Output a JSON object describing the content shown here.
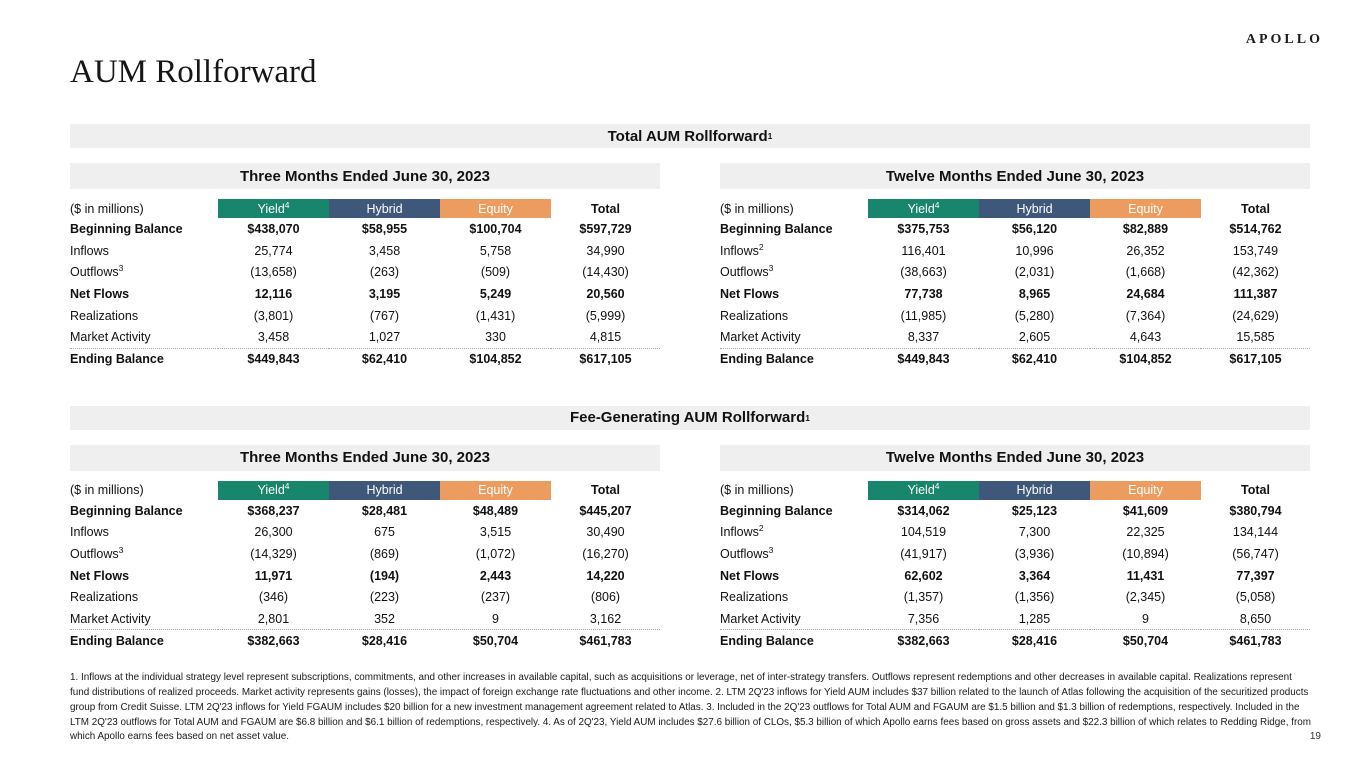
{
  "brand": {
    "logo_text": "APOLLO"
  },
  "page": {
    "title": "AUM Rollforward",
    "number": "19"
  },
  "colors": {
    "band_bg": "#EFEFEF",
    "yield": "#17866C",
    "hybrid": "#3F587A",
    "equity": "#EC9C5E",
    "column_header_text": "#FFFFFF"
  },
  "sections": [
    {
      "title": "Total AUM Rollforward",
      "title_superscript": "1",
      "tables": [
        {
          "period_header": "Three Months Ended June 30, 2023",
          "unit_label": "($ in millions)",
          "columns": [
            {
              "label": "Yield",
              "superscript": "4",
              "color_key": "yield"
            },
            {
              "label": "Hybrid",
              "superscript": "",
              "color_key": "hybrid"
            },
            {
              "label": "Equity",
              "superscript": "",
              "color_key": "equity"
            },
            {
              "label": "Total",
              "superscript": "",
              "color_key": ""
            }
          ],
          "rows": [
            {
              "label": "Beginning Balance",
              "superscript": "",
              "bold": true,
              "topline": false,
              "values": [
                "$438,070",
                "$58,955",
                "$100,704",
                "$597,729"
              ]
            },
            {
              "label": "Inflows",
              "superscript": "",
              "bold": false,
              "topline": false,
              "values": [
                "25,774",
                "3,458",
                "5,758",
                "34,990"
              ]
            },
            {
              "label": "Outflows",
              "superscript": "3",
              "bold": false,
              "topline": false,
              "values": [
                "(13,658)",
                "(263)",
                "(509)",
                "(14,430)"
              ]
            },
            {
              "label": "Net Flows",
              "superscript": "",
              "bold": true,
              "topline": false,
              "values": [
                "12,116",
                "3,195",
                "5,249",
                "20,560"
              ]
            },
            {
              "label": "Realizations",
              "superscript": "",
              "bold": false,
              "topline": false,
              "values": [
                "(3,801)",
                "(767)",
                "(1,431)",
                "(5,999)"
              ]
            },
            {
              "label": "Market Activity",
              "superscript": "",
              "bold": false,
              "topline": false,
              "values": [
                "3,458",
                "1,027",
                "330",
                "4,815"
              ]
            },
            {
              "label": "Ending Balance",
              "superscript": "",
              "bold": true,
              "topline": true,
              "values": [
                "$449,843",
                "$62,410",
                "$104,852",
                "$617,105"
              ]
            }
          ]
        },
        {
          "period_header": "Twelve Months Ended June 30, 2023",
          "unit_label": "($ in millions)",
          "columns": [
            {
              "label": "Yield",
              "superscript": "4",
              "color_key": "yield"
            },
            {
              "label": "Hybrid",
              "superscript": "",
              "color_key": "hybrid"
            },
            {
              "label": "Equity",
              "superscript": "",
              "color_key": "equity"
            },
            {
              "label": "Total",
              "superscript": "",
              "color_key": ""
            }
          ],
          "rows": [
            {
              "label": "Beginning Balance",
              "superscript": "",
              "bold": true,
              "topline": false,
              "values": [
                "$375,753",
                "$56,120",
                "$82,889",
                "$514,762"
              ]
            },
            {
              "label": "Inflows",
              "superscript": "2",
              "bold": false,
              "topline": false,
              "values": [
                "116,401",
                "10,996",
                "26,352",
                "153,749"
              ]
            },
            {
              "label": "Outflows",
              "superscript": "3",
              "bold": false,
              "topline": false,
              "values": [
                "(38,663)",
                "(2,031)",
                "(1,668)",
                "(42,362)"
              ]
            },
            {
              "label": "Net Flows",
              "superscript": "",
              "bold": true,
              "topline": false,
              "values": [
                "77,738",
                "8,965",
                "24,684",
                "111,387"
              ]
            },
            {
              "label": "Realizations",
              "superscript": "",
              "bold": false,
              "topline": false,
              "values": [
                "(11,985)",
                "(5,280)",
                "(7,364)",
                "(24,629)"
              ]
            },
            {
              "label": "Market Activity",
              "superscript": "",
              "bold": false,
              "topline": false,
              "values": [
                "8,337",
                "2,605",
                "4,643",
                "15,585"
              ]
            },
            {
              "label": "Ending Balance",
              "superscript": "",
              "bold": true,
              "topline": true,
              "values": [
                "$449,843",
                "$62,410",
                "$104,852",
                "$617,105"
              ]
            }
          ]
        }
      ]
    },
    {
      "title": "Fee-Generating AUM Rollforward",
      "title_superscript": "1",
      "tables": [
        {
          "period_header": "Three Months Ended June 30, 2023",
          "unit_label": "($ in millions)",
          "columns": [
            {
              "label": "Yield",
              "superscript": "4",
              "color_key": "yield"
            },
            {
              "label": "Hybrid",
              "superscript": "",
              "color_key": "hybrid"
            },
            {
              "label": "Equity",
              "superscript": "",
              "color_key": "equity"
            },
            {
              "label": "Total",
              "superscript": "",
              "color_key": ""
            }
          ],
          "rows": [
            {
              "label": "Beginning Balance",
              "superscript": "",
              "bold": true,
              "topline": false,
              "values": [
                "$368,237",
                "$28,481",
                "$48,489",
                "$445,207"
              ]
            },
            {
              "label": "Inflows",
              "superscript": "",
              "bold": false,
              "topline": false,
              "values": [
                "26,300",
                "675",
                "3,515",
                "30,490"
              ]
            },
            {
              "label": "Outflows",
              "superscript": "3",
              "bold": false,
              "topline": false,
              "values": [
                "(14,329)",
                "(869)",
                "(1,072)",
                "(16,270)"
              ]
            },
            {
              "label": "Net Flows",
              "superscript": "",
              "bold": true,
              "topline": false,
              "values": [
                "11,971",
                "(194)",
                "2,443",
                "14,220"
              ]
            },
            {
              "label": "Realizations",
              "superscript": "",
              "bold": false,
              "topline": false,
              "values": [
                "(346)",
                "(223)",
                "(237)",
                "(806)"
              ]
            },
            {
              "label": "Market Activity",
              "superscript": "",
              "bold": false,
              "topline": false,
              "values": [
                "2,801",
                "352",
                "9",
                "3,162"
              ]
            },
            {
              "label": "Ending Balance",
              "superscript": "",
              "bold": true,
              "topline": true,
              "values": [
                "$382,663",
                "$28,416",
                "$50,704",
                "$461,783"
              ]
            }
          ]
        },
        {
          "period_header": "Twelve Months Ended June 30, 2023",
          "unit_label": "($ in millions)",
          "columns": [
            {
              "label": "Yield",
              "superscript": "4",
              "color_key": "yield"
            },
            {
              "label": "Hybrid",
              "superscript": "",
              "color_key": "hybrid"
            },
            {
              "label": "Equity",
              "superscript": "",
              "color_key": "equity"
            },
            {
              "label": "Total",
              "superscript": "",
              "color_key": ""
            }
          ],
          "rows": [
            {
              "label": "Beginning Balance",
              "superscript": "",
              "bold": true,
              "topline": false,
              "values": [
                "$314,062",
                "$25,123",
                "$41,609",
                "$380,794"
              ]
            },
            {
              "label": "Inflows",
              "superscript": "2",
              "bold": false,
              "topline": false,
              "values": [
                "104,519",
                "7,300",
                "22,325",
                "134,144"
              ]
            },
            {
              "label": "Outflows",
              "superscript": "3",
              "bold": false,
              "topline": false,
              "values": [
                "(41,917)",
                "(3,936)",
                "(10,894)",
                "(56,747)"
              ]
            },
            {
              "label": "Net Flows",
              "superscript": "",
              "bold": true,
              "topline": false,
              "values": [
                "62,602",
                "3,364",
                "11,431",
                "77,397"
              ]
            },
            {
              "label": "Realizations",
              "superscript": "",
              "bold": false,
              "topline": false,
              "values": [
                "(1,357)",
                "(1,356)",
                "(2,345)",
                "(5,058)"
              ]
            },
            {
              "label": "Market Activity",
              "superscript": "",
              "bold": false,
              "topline": false,
              "values": [
                "7,356",
                "1,285",
                "9",
                "8,650"
              ]
            },
            {
              "label": "Ending Balance",
              "superscript": "",
              "bold": true,
              "topline": true,
              "values": [
                "$382,663",
                "$28,416",
                "$50,704",
                "$461,783"
              ]
            }
          ]
        }
      ]
    }
  ],
  "footnotes": "1. Inflows at the individual strategy level represent subscriptions, commitments, and other increases in available capital, such as acquisitions or leverage, net of inter-strategy transfers. Outflows represent redemptions and other decreases in available capital. Realizations represent fund distributions of realized proceeds. Market activity represents gains (losses), the impact of foreign exchange rate fluctuations and other income. 2. LTM 2Q'23 inflows for Yield AUM includes $37 billion related to the launch of Atlas following the acquisition of the securitized products group from Credit Suisse. LTM 2Q'23 inflows for Yield FGAUM includes $20 billion for a new investment management agreement related to Atlas. 3. Included in the 2Q'23 outflows for Total AUM and FGAUM are $1.5 billion and $1.3 billion of redemptions, respectively. Included in the LTM 2Q'23 outflows for Total AUM and FGAUM are $6.8 billion and $6.1 billion of redemptions, respectively. 4. As of 2Q'23, Yield AUM includes $27.6 billion of CLOs, $5.3 billion of which Apollo earns fees based on gross assets and $22.3 billion of which relates to Redding Ridge, from which Apollo earns fees based on net asset value."
}
